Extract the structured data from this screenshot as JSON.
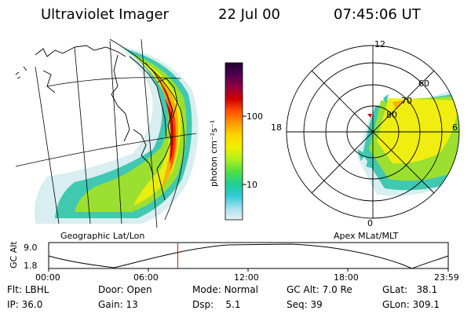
{
  "header": {
    "instrument": "Ultraviolet Imager",
    "date": "22 Jul 00",
    "time": "07:45:06 UT"
  },
  "left_panel": {
    "caption": "Geographic Lat/Lon"
  },
  "right_panel": {
    "caption": "Apex MLat/MLT",
    "mlt_labels": {
      "top": "12",
      "left": "18",
      "right": "6",
      "bottom": "0"
    },
    "lat_labels": [
      "60",
      "70",
      "80"
    ]
  },
  "colorbar": {
    "unit_label": "photon cm⁻²s⁻¹",
    "tick_labels": [
      "100",
      "10"
    ],
    "colors": [
      "#200030",
      "#500050",
      "#900040",
      "#d00000",
      "#ff5000",
      "#ff9a00",
      "#ffd400",
      "#f0f000",
      "#b0f020",
      "#50e040",
      "#20d090",
      "#30c8d8",
      "#a0e0ee",
      "#e8f0f4"
    ]
  },
  "timeline": {
    "ylabel": "GC Alt",
    "y_ticks": [
      "9.0",
      "1.8"
    ],
    "x_ticks": [
      "00:00",
      "06:00",
      "12:00",
      "18:00",
      "23:59"
    ],
    "current_time_fraction": 0.323
  },
  "info": {
    "flt": {
      "label": "Flt:",
      "value": "LBHL"
    },
    "ip": {
      "label": "IP:",
      "value": "36.0"
    },
    "door": {
      "label": "Door:",
      "value": "Open"
    },
    "gain": {
      "label": "Gain:",
      "value": "13"
    },
    "mode": {
      "label": "Mode:",
      "value": "Normal"
    },
    "dsp": {
      "label": "Dsp:",
      "value": "5.1"
    },
    "gcalt": {
      "label": "GC Alt:",
      "value": "7.0 Re"
    },
    "seq": {
      "label": "Seq:",
      "value": "39"
    },
    "glat": {
      "label": "GLat:",
      "value": "38.1"
    },
    "glon": {
      "label": "GLon:",
      "value": "309.1"
    }
  }
}
